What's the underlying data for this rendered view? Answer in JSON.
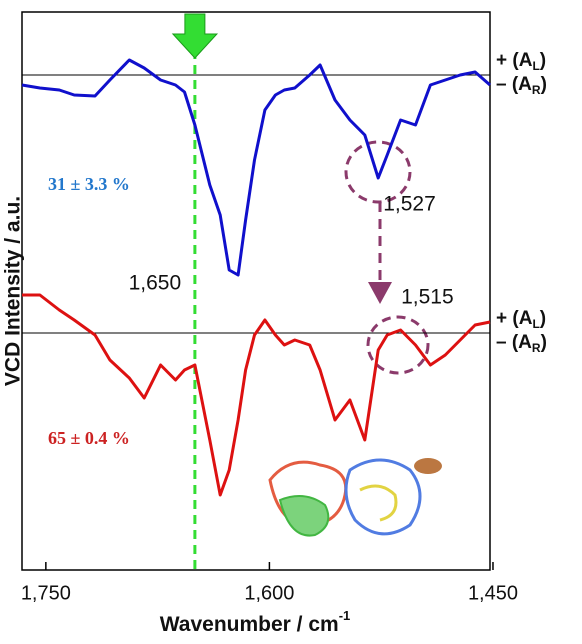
{
  "chart_data": {
    "type": "line",
    "y_label": "VCD Intensity / a.u.",
    "x_label": {
      "text": "Wavenumber / cm",
      "sup": "-1"
    },
    "x": [
      1766,
      1754,
      1741,
      1731,
      1717,
      1707,
      1694,
      1684,
      1673,
      1663,
      1657,
      1650,
      1640,
      1633,
      1627,
      1621,
      1616,
      1610,
      1603,
      1596,
      1590,
      1583,
      1573,
      1566,
      1556,
      1546,
      1536,
      1527,
      1521,
      1512,
      1502,
      1492,
      1482,
      1472,
      1462,
      1452
    ],
    "series": [
      {
        "name": "31 ± 3.3 %",
        "color": "#1010cc",
        "label_color": "#2277cc",
        "values": [
          485,
          482,
          480,
          475,
          474,
          490,
          510,
          502,
          490,
          485,
          478,
          445,
          385,
          355,
          300,
          295,
          350,
          410,
          460,
          475,
          480,
          482,
          495,
          505,
          470,
          450,
          435,
          392,
          415,
          450,
          445,
          485,
          490,
          495,
          498,
          485
        ]
      },
      {
        "name": "65 ± 0.4 %",
        "color": "#dd1111",
        "label_color": "#cc2222",
        "values": [
          275,
          275,
          260,
          250,
          235,
          210,
          192,
          172,
          205,
          190,
          200,
          205,
          130,
          75,
          100,
          150,
          200,
          235,
          250,
          235,
          225,
          230,
          225,
          200,
          150,
          170,
          130,
          220,
          235,
          240,
          225,
          205,
          215,
          230,
          245,
          248
        ]
      }
    ],
    "reference_lines": [
      {
        "value": 495,
        "plus": "+ (A",
        "plus_sub": "L",
        "minus": "– (A",
        "minus_sub": "R",
        "close": ")"
      },
      {
        "value": 237,
        "plus": "+ (A",
        "plus_sub": "L",
        "minus": "– (A",
        "minus_sub": "R",
        "close": ")"
      }
    ],
    "marker_line": {
      "value": 1650,
      "label": "1,650",
      "color": "#33dd33"
    },
    "peak_labels": [
      {
        "value": 1527,
        "label": "1,527"
      },
      {
        "value": 1515,
        "label": "1,515"
      }
    ],
    "xlim": [
      1766,
      1452
    ],
    "ylim": [
      0,
      558
    ],
    "xticks": [
      {
        "value": 1750,
        "label": "1,750"
      },
      {
        "value": 1600,
        "label": "1,600"
      },
      {
        "value": 1450,
        "label": "1,450"
      }
    ]
  }
}
